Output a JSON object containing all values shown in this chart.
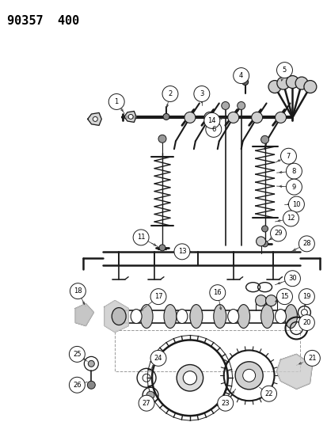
{
  "title": "90357  400",
  "bg_color": "#ffffff",
  "line_color": "#1a1a1a",
  "gray": "#888888",
  "darkgray": "#555555",
  "title_fontsize": 11,
  "fig_width": 4.14,
  "fig_height": 5.33,
  "dpi": 100
}
